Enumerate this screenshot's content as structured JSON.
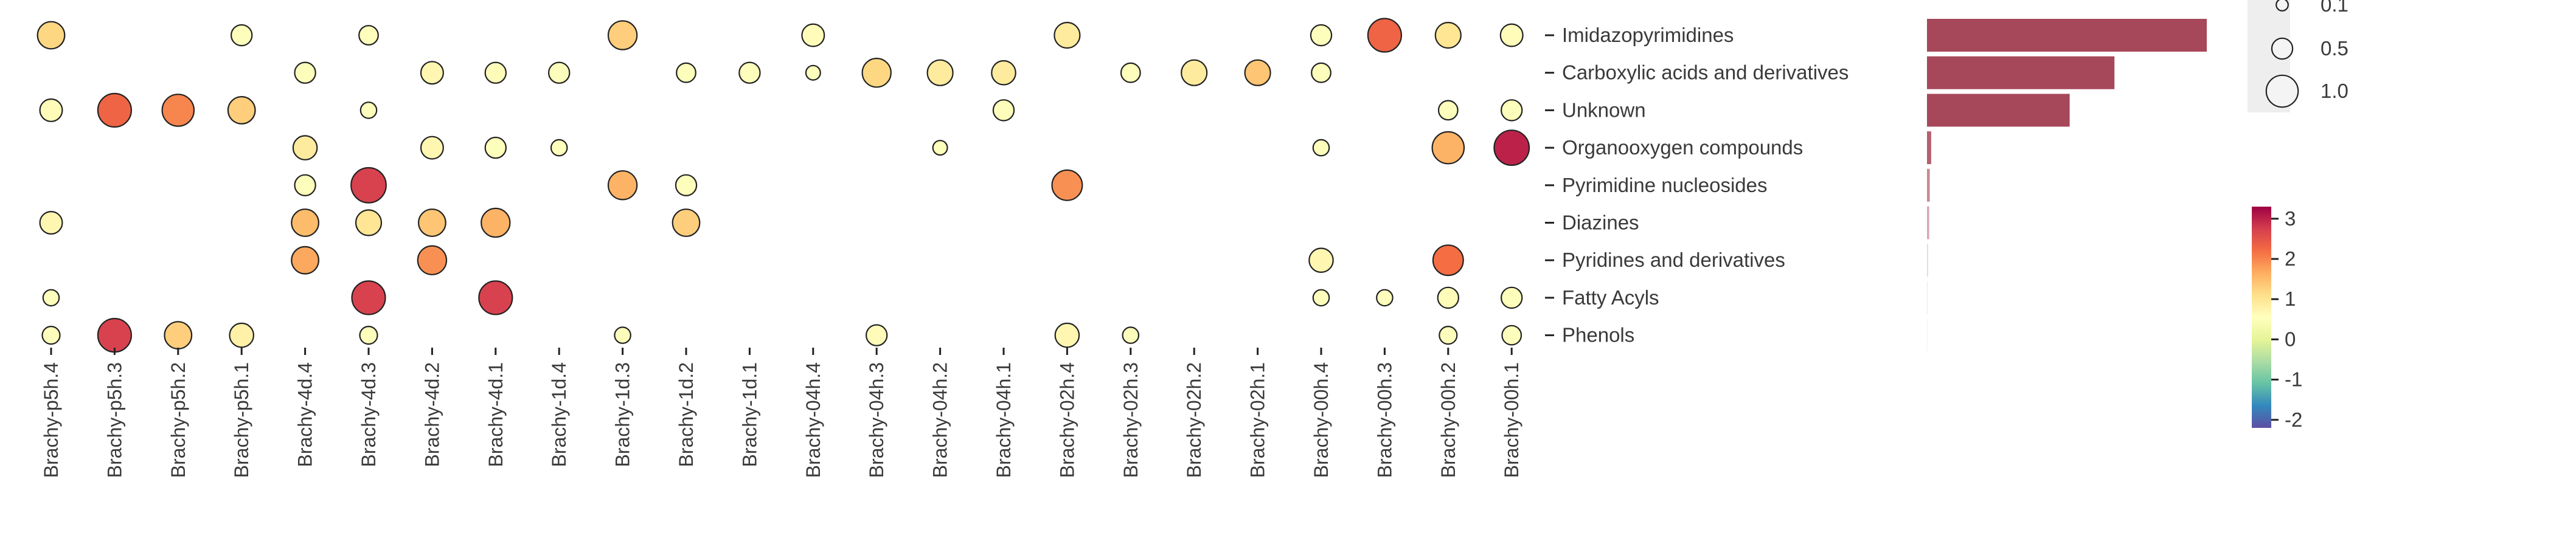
{
  "chart_data": {
    "type": "bubble-heatmap",
    "x_categories": [
      "Brachy-p5h.4",
      "Brachy-p5h.3",
      "Brachy-p5h.2",
      "Brachy-p5h.1",
      "Brachy-4d.4",
      "Brachy-4d.3",
      "Brachy-4d.2",
      "Brachy-4d.1",
      "Brachy-1d.4",
      "Brachy-1d.3",
      "Brachy-1d.2",
      "Brachy-1d.1",
      "Brachy-04h.4",
      "Brachy-04h.3",
      "Brachy-04h.2",
      "Brachy-04h.1",
      "Brachy-02h.4",
      "Brachy-02h.3",
      "Brachy-02h.2",
      "Brachy-02h.1",
      "Brachy-00h.4",
      "Brachy-00h.3",
      "Brachy-00h.2",
      "Brachy-00h.1"
    ],
    "y_categories": [
      "Imidazopyrimidines",
      "Carboxylic acids and derivatives",
      "Unknown",
      "Organooxygen compounds",
      "Pyrimidine nucleosides",
      "Diazines",
      "Pyridines and derivatives",
      "Fatty Acyls",
      "Phenols"
    ],
    "points": [
      {
        "x": "Brachy-p5h.4",
        "y": "Imidazopyrimidines",
        "size": 0.55,
        "color": 1.2
      },
      {
        "x": "Brachy-p5h.1",
        "y": "Imidazopyrimidines",
        "size": 0.35,
        "color": 0.5
      },
      {
        "x": "Brachy-4d.3",
        "y": "Imidazopyrimidines",
        "size": 0.3,
        "color": 0.5
      },
      {
        "x": "Brachy-1d.3",
        "y": "Imidazopyrimidines",
        "size": 0.6,
        "color": 1.3
      },
      {
        "x": "Brachy-04h.4",
        "y": "Imidazopyrimidines",
        "size": 0.4,
        "color": 0.6
      },
      {
        "x": "Brachy-02h.4",
        "y": "Imidazopyrimidines",
        "size": 0.5,
        "color": 0.9
      },
      {
        "x": "Brachy-00h.4",
        "y": "Imidazopyrimidines",
        "size": 0.35,
        "color": 0.5
      },
      {
        "x": "Brachy-00h.3",
        "y": "Imidazopyrimidines",
        "size": 0.75,
        "color": 2.3
      },
      {
        "x": "Brachy-00h.2",
        "y": "Imidazopyrimidines",
        "size": 0.5,
        "color": 1.0
      },
      {
        "x": "Brachy-00h.1",
        "y": "Imidazopyrimidines",
        "size": 0.4,
        "color": 0.6
      },
      {
        "x": "Brachy-4d.4",
        "y": "Carboxylic acids and derivatives",
        "size": 0.35,
        "color": 0.5
      },
      {
        "x": "Brachy-4d.2",
        "y": "Carboxylic acids and derivatives",
        "size": 0.4,
        "color": 0.7
      },
      {
        "x": "Brachy-4d.1",
        "y": "Carboxylic acids and derivatives",
        "size": 0.35,
        "color": 0.6
      },
      {
        "x": "Brachy-1d.4",
        "y": "Carboxylic acids and derivatives",
        "size": 0.35,
        "color": 0.5
      },
      {
        "x": "Brachy-1d.2",
        "y": "Carboxylic acids and derivatives",
        "size": 0.3,
        "color": 0.5
      },
      {
        "x": "Brachy-1d.1",
        "y": "Carboxylic acids and derivatives",
        "size": 0.35,
        "color": 0.5
      },
      {
        "x": "Brachy-04h.4",
        "y": "Carboxylic acids and derivatives",
        "size": 0.15,
        "color": 0.5
      },
      {
        "x": "Brachy-04h.3",
        "y": "Carboxylic acids and derivatives",
        "size": 0.6,
        "color": 1.2
      },
      {
        "x": "Brachy-04h.2",
        "y": "Carboxylic acids and derivatives",
        "size": 0.5,
        "color": 0.9
      },
      {
        "x": "Brachy-04h.1",
        "y": "Carboxylic acids and derivatives",
        "size": 0.45,
        "color": 0.9
      },
      {
        "x": "Brachy-02h.3",
        "y": "Carboxylic acids and derivatives",
        "size": 0.3,
        "color": 0.5
      },
      {
        "x": "Brachy-02h.2",
        "y": "Carboxylic acids and derivatives",
        "size": 0.5,
        "color": 0.9
      },
      {
        "x": "Brachy-02h.1",
        "y": "Carboxylic acids and derivatives",
        "size": 0.5,
        "color": 1.4
      },
      {
        "x": "Brachy-00h.4",
        "y": "Carboxylic acids and derivatives",
        "size": 0.3,
        "color": 0.5
      },
      {
        "x": "Brachy-p5h.4",
        "y": "Unknown",
        "size": 0.4,
        "color": 0.6
      },
      {
        "x": "Brachy-p5h.3",
        "y": "Unknown",
        "size": 0.75,
        "color": 2.3
      },
      {
        "x": "Brachy-p5h.2",
        "y": "Unknown",
        "size": 0.7,
        "color": 2.0
      },
      {
        "x": "Brachy-p5h.1",
        "y": "Unknown",
        "size": 0.55,
        "color": 1.3
      },
      {
        "x": "Brachy-4d.3",
        "y": "Unknown",
        "size": 0.2,
        "color": 0.5
      },
      {
        "x": "Brachy-04h.1",
        "y": "Unknown",
        "size": 0.35,
        "color": 0.5
      },
      {
        "x": "Brachy-00h.2",
        "y": "Unknown",
        "size": 0.3,
        "color": 0.5
      },
      {
        "x": "Brachy-00h.1",
        "y": "Unknown",
        "size": 0.35,
        "color": 0.5
      },
      {
        "x": "Brachy-4d.4",
        "y": "Organooxygen compounds",
        "size": 0.45,
        "color": 0.9
      },
      {
        "x": "Brachy-4d.2",
        "y": "Organooxygen compounds",
        "size": 0.4,
        "color": 0.7
      },
      {
        "x": "Brachy-4d.1",
        "y": "Organooxygen compounds",
        "size": 0.35,
        "color": 0.5
      },
      {
        "x": "Brachy-1d.4",
        "y": "Organooxygen compounds",
        "size": 0.2,
        "color": 0.5
      },
      {
        "x": "Brachy-04h.2",
        "y": "Organooxygen compounds",
        "size": 0.15,
        "color": 0.5
      },
      {
        "x": "Brachy-00h.4",
        "y": "Organooxygen compounds",
        "size": 0.2,
        "color": 0.5
      },
      {
        "x": "Brachy-00h.2",
        "y": "Organooxygen compounds",
        "size": 0.7,
        "color": 1.6
      },
      {
        "x": "Brachy-00h.1",
        "y": "Organooxygen compounds",
        "size": 0.8,
        "color": 3.0
      },
      {
        "x": "Brachy-4d.4",
        "y": "Pyrimidine nucleosides",
        "size": 0.35,
        "color": 0.5
      },
      {
        "x": "Brachy-4d.3",
        "y": "Pyrimidine nucleosides",
        "size": 0.8,
        "color": 2.7
      },
      {
        "x": "Brachy-1d.3",
        "y": "Pyrimidine nucleosides",
        "size": 0.6,
        "color": 1.6
      },
      {
        "x": "Brachy-1d.2",
        "y": "Pyrimidine nucleosides",
        "size": 0.35,
        "color": 0.5
      },
      {
        "x": "Brachy-02h.4",
        "y": "Pyrimidine nucleosides",
        "size": 0.65,
        "color": 1.9
      },
      {
        "x": "Brachy-p5h.4",
        "y": "Diazines",
        "size": 0.4,
        "color": 0.7
      },
      {
        "x": "Brachy-4d.4",
        "y": "Diazines",
        "size": 0.55,
        "color": 1.5
      },
      {
        "x": "Brachy-4d.3",
        "y": "Diazines",
        "size": 0.5,
        "color": 1.0
      },
      {
        "x": "Brachy-4d.2",
        "y": "Diazines",
        "size": 0.55,
        "color": 1.4
      },
      {
        "x": "Brachy-4d.1",
        "y": "Diazines",
        "size": 0.6,
        "color": 1.6
      },
      {
        "x": "Brachy-1d.2",
        "y": "Diazines",
        "size": 0.55,
        "color": 1.3
      },
      {
        "x": "Brachy-4d.4",
        "y": "Pyridines and derivatives",
        "size": 0.55,
        "color": 1.7
      },
      {
        "x": "Brachy-4d.2",
        "y": "Pyridines and derivatives",
        "size": 0.6,
        "color": 1.9
      },
      {
        "x": "Brachy-00h.4",
        "y": "Pyridines and derivatives",
        "size": 0.45,
        "color": 0.7
      },
      {
        "x": "Brachy-00h.2",
        "y": "Pyridines and derivatives",
        "size": 0.65,
        "color": 2.2
      },
      {
        "x": "Brachy-p5h.4",
        "y": "Fatty Acyls",
        "size": 0.2,
        "color": 0.5
      },
      {
        "x": "Brachy-4d.3",
        "y": "Fatty Acyls",
        "size": 0.75,
        "color": 2.7
      },
      {
        "x": "Brachy-4d.1",
        "y": "Fatty Acyls",
        "size": 0.75,
        "color": 2.7
      },
      {
        "x": "Brachy-00h.4",
        "y": "Fatty Acyls",
        "size": 0.2,
        "color": 0.5
      },
      {
        "x": "Brachy-00h.3",
        "y": "Fatty Acyls",
        "size": 0.2,
        "color": 0.5
      },
      {
        "x": "Brachy-00h.2",
        "y": "Fatty Acyls",
        "size": 0.35,
        "color": 0.6
      },
      {
        "x": "Brachy-00h.1",
        "y": "Fatty Acyls",
        "size": 0.35,
        "color": 0.5
      },
      {
        "x": "Brachy-p5h.4",
        "y": "Phenols",
        "size": 0.25,
        "color": 0.5
      },
      {
        "x": "Brachy-p5h.3",
        "y": "Phenols",
        "size": 0.75,
        "color": 2.7
      },
      {
        "x": "Brachy-p5h.2",
        "y": "Phenols",
        "size": 0.55,
        "color": 1.3
      },
      {
        "x": "Brachy-p5h.1",
        "y": "Phenols",
        "size": 0.45,
        "color": 0.8
      },
      {
        "x": "Brachy-4d.3",
        "y": "Phenols",
        "size": 0.25,
        "color": 0.5
      },
      {
        "x": "Brachy-1d.3",
        "y": "Phenols",
        "size": 0.2,
        "color": 0.5
      },
      {
        "x": "Brachy-04h.3",
        "y": "Phenols",
        "size": 0.35,
        "color": 0.6
      },
      {
        "x": "Brachy-02h.4",
        "y": "Phenols",
        "size": 0.45,
        "color": 0.7
      },
      {
        "x": "Brachy-02h.3",
        "y": "Phenols",
        "size": 0.2,
        "color": 0.5
      },
      {
        "x": "Brachy-00h.2",
        "y": "Phenols",
        "size": 0.25,
        "color": 0.5
      },
      {
        "x": "Brachy-00h.1",
        "y": "Phenols",
        "size": 0.3,
        "color": 0.5
      }
    ],
    "bar_chart": {
      "type": "bar",
      "orientation": "horizontal",
      "categories": [
        "Imidazopyrimidines",
        "Carboxylic acids and derivatives",
        "Unknown",
        "Organooxygen compounds",
        "Pyrimidine nucleosides",
        "Diazines",
        "Pyridines and derivatives",
        "Fatty Acyls",
        "Phenols"
      ],
      "values": [
        1.0,
        0.67,
        0.51,
        0.015,
        0.01,
        0.008,
        0.004,
        0.002,
        0.001
      ],
      "colors": [
        "#a7485a",
        "#a7485a",
        "#a7485a",
        "#b5606f",
        "#c98a95",
        "#d9aab3",
        "#ecd3d8",
        "#f4e4e7",
        "#f8eef0"
      ]
    },
    "size_legend": {
      "title": "",
      "labels": [
        "0.1",
        "0.5",
        "1.0"
      ],
      "values": [
        0.1,
        0.5,
        1.0
      ],
      "background": "#eeeeee"
    },
    "color_legend": {
      "title": "",
      "ticks": [
        "3",
        "2",
        "1",
        "0",
        "-1",
        "-2"
      ],
      "tick_values": [
        3,
        2,
        1,
        0,
        -1,
        -2
      ],
      "range": [
        -2.2,
        3.3
      ],
      "colormap": "Spectral_r"
    },
    "grid": false
  }
}
